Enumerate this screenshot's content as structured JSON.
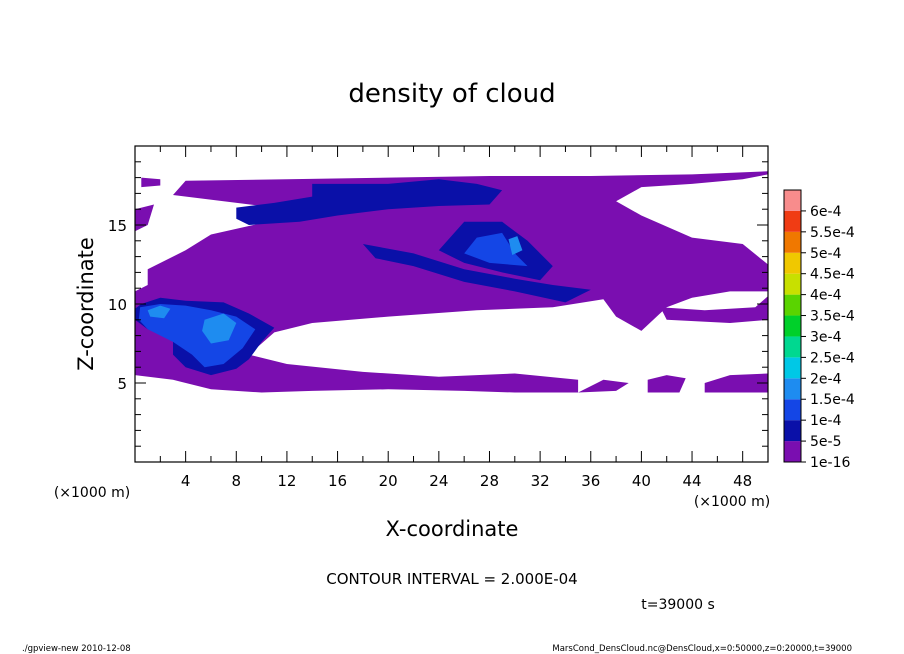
{
  "chart_data": {
    "type": "heatmap",
    "title": "density of cloud",
    "xlabel": "X-coordinate",
    "ylabel": "Z-coordinate",
    "x_unit_label": "(×1000 m)",
    "y_unit_label": "(×1000 m)",
    "xlim": [
      0,
      50
    ],
    "ylim": [
      0,
      20
    ],
    "x_ticks": [
      4,
      8,
      12,
      16,
      20,
      24,
      28,
      32,
      36,
      40,
      44,
      48
    ],
    "y_ticks": [
      5,
      10,
      15
    ],
    "contour_interval_text": "CONTOUR INTERVAL = 2.000E-04",
    "time_text": "t=39000 s",
    "colorbar": {
      "labels": [
        "1e-16",
        "5e-5",
        "1e-4",
        "1.5e-4",
        "2e-4",
        "2.5e-4",
        "3e-4",
        "3.5e-4",
        "4e-4",
        "4.5e-4",
        "5e-4",
        "5.5e-4",
        "6e-4"
      ],
      "colors": [
        "#7a0eb0",
        "#0a10a8",
        "#1446e6",
        "#1e8cf0",
        "#00c8e6",
        "#00d890",
        "#00d02a",
        "#5ad400",
        "#c8e000",
        "#f0c800",
        "#f07800",
        "#f03c14",
        "#f88c8c"
      ]
    },
    "regions": [
      {
        "level": 0,
        "points": [
          [
            0,
            5.5
          ],
          [
            3,
            5.2
          ],
          [
            6,
            4.6
          ],
          [
            10,
            4.4
          ],
          [
            14,
            4.5
          ],
          [
            20,
            4.6
          ],
          [
            26,
            4.5
          ],
          [
            30,
            4.4
          ],
          [
            35,
            4.4
          ],
          [
            35,
            5.2
          ],
          [
            30,
            5.6
          ],
          [
            24,
            5.4
          ],
          [
            18,
            5.7
          ],
          [
            12,
            6.2
          ],
          [
            9,
            6.8
          ],
          [
            11,
            8.2
          ],
          [
            14,
            8.8
          ],
          [
            20,
            9.2
          ],
          [
            27,
            9.6
          ],
          [
            33,
            9.8
          ],
          [
            37,
            10.3
          ],
          [
            38,
            9.2
          ],
          [
            40,
            8.3
          ],
          [
            42,
            9.8
          ],
          [
            44,
            10.4
          ],
          [
            47,
            10.8
          ],
          [
            50,
            10.8
          ],
          [
            50,
            12.5
          ],
          [
            48,
            13.8
          ],
          [
            44,
            14.2
          ],
          [
            40,
            15.6
          ],
          [
            38,
            16.5
          ],
          [
            40,
            17.4
          ],
          [
            44,
            17.6
          ],
          [
            48,
            17.9
          ],
          [
            50,
            18.2
          ],
          [
            50,
            18.4
          ],
          [
            44,
            18.2
          ],
          [
            36,
            18.1
          ],
          [
            28,
            18.1
          ],
          [
            20,
            18.0
          ],
          [
            12,
            17.9
          ],
          [
            4,
            17.8
          ],
          [
            3,
            16.9
          ],
          [
            10,
            16.2
          ],
          [
            11,
            15.3
          ],
          [
            6,
            14.4
          ],
          [
            4,
            13.4
          ],
          [
            1,
            12.2
          ],
          [
            1,
            11.2
          ],
          [
            0,
            10.8
          ]
        ]
      },
      {
        "level": 0,
        "points": [
          [
            0.5,
            18.0
          ],
          [
            2,
            17.9
          ],
          [
            2,
            17.5
          ],
          [
            0.5,
            17.4
          ]
        ]
      },
      {
        "level": 0,
        "points": [
          [
            0,
            16.0
          ],
          [
            1.5,
            16.3
          ],
          [
            1,
            15.0
          ],
          [
            0,
            14.6
          ]
        ]
      },
      {
        "level": 0,
        "points": [
          [
            41.5,
            9.8
          ],
          [
            45,
            9.6
          ],
          [
            49,
            9.8
          ],
          [
            50,
            10.5
          ],
          [
            50,
            9.0
          ],
          [
            47,
            8.8
          ],
          [
            42,
            9.0
          ]
        ]
      },
      {
        "level": 0,
        "points": [
          [
            35,
            4.4
          ],
          [
            38,
            4.5
          ],
          [
            39,
            5.0
          ],
          [
            37,
            5.2
          ]
        ]
      },
      {
        "level": 0,
        "points": [
          [
            40.5,
            4.4
          ],
          [
            43,
            4.4
          ],
          [
            43.5,
            5.3
          ],
          [
            42,
            5.5
          ],
          [
            40.5,
            5.2
          ]
        ]
      },
      {
        "level": 0,
        "points": [
          [
            45,
            4.4
          ],
          [
            50,
            4.4
          ],
          [
            50,
            5.6
          ],
          [
            47,
            5.5
          ],
          [
            45,
            5.0
          ]
        ]
      },
      {
        "level": 1,
        "points": [
          [
            0.5,
            10.0
          ],
          [
            2,
            10.4
          ],
          [
            4,
            10.2
          ],
          [
            7,
            10.1
          ],
          [
            9,
            9.4
          ],
          [
            11,
            8.5
          ],
          [
            10,
            7.6
          ],
          [
            9,
            6.5
          ],
          [
            8,
            5.9
          ],
          [
            6,
            5.5
          ],
          [
            4,
            6.0
          ],
          [
            3,
            6.8
          ],
          [
            3,
            7.8
          ],
          [
            1,
            8.4
          ],
          [
            0,
            9.0
          ],
          [
            0,
            9.7
          ]
        ]
      },
      {
        "level": 1,
        "points": [
          [
            8,
            16.1
          ],
          [
            11,
            16.4
          ],
          [
            14,
            16.8
          ],
          [
            14,
            17.6
          ],
          [
            20,
            17.6
          ],
          [
            24,
            17.9
          ],
          [
            27,
            17.6
          ],
          [
            29,
            17.2
          ],
          [
            28,
            16.3
          ],
          [
            24,
            16.2
          ],
          [
            20,
            16.0
          ],
          [
            16,
            15.6
          ],
          [
            13,
            15.2
          ],
          [
            9,
            15.0
          ],
          [
            8,
            15.4
          ]
        ]
      },
      {
        "level": 1,
        "points": [
          [
            18,
            13.8
          ],
          [
            22,
            13.2
          ],
          [
            26,
            12.2
          ],
          [
            30,
            11.6
          ],
          [
            33,
            11.2
          ],
          [
            36,
            10.9
          ],
          [
            34,
            10.1
          ],
          [
            30,
            10.8
          ],
          [
            26,
            11.4
          ],
          [
            22,
            12.4
          ],
          [
            19,
            12.9
          ]
        ]
      },
      {
        "level": 1,
        "points": [
          [
            26,
            15.2
          ],
          [
            29,
            15.2
          ],
          [
            31,
            14.0
          ],
          [
            33,
            12.4
          ],
          [
            32,
            11.5
          ],
          [
            29,
            12.0
          ],
          [
            26,
            12.6
          ],
          [
            24,
            13.4
          ]
        ]
      },
      {
        "level": 2,
        "points": [
          [
            0.4,
            9.8
          ],
          [
            2,
            10.0
          ],
          [
            4,
            9.9
          ],
          [
            6,
            9.6
          ],
          [
            8,
            9.2
          ],
          [
            9.5,
            8.4
          ],
          [
            8.5,
            7.2
          ],
          [
            7,
            6.2
          ],
          [
            5.5,
            6.0
          ],
          [
            4.5,
            6.8
          ],
          [
            3,
            7.6
          ],
          [
            1,
            8.4
          ],
          [
            0.3,
            9.0
          ]
        ]
      },
      {
        "level": 2,
        "points": [
          [
            27,
            14.2
          ],
          [
            29,
            14.5
          ],
          [
            30,
            13.2
          ],
          [
            31,
            12.4
          ],
          [
            28,
            12.6
          ],
          [
            26,
            13.2
          ]
        ]
      },
      {
        "level": 3,
        "points": [
          [
            1,
            9.6
          ],
          [
            2,
            9.9
          ],
          [
            2.8,
            9.7
          ],
          [
            2.3,
            9.1
          ],
          [
            1.2,
            9.2
          ]
        ]
      },
      {
        "level": 3,
        "points": [
          [
            5.5,
            9.0
          ],
          [
            7,
            9.4
          ],
          [
            8,
            8.8
          ],
          [
            7.4,
            7.7
          ],
          [
            6,
            7.5
          ],
          [
            5.3,
            8.3
          ]
        ]
      },
      {
        "level": 3,
        "points": [
          [
            29.5,
            14.1
          ],
          [
            30.2,
            14.3
          ],
          [
            30.6,
            13.4
          ],
          [
            29.8,
            13.1
          ]
        ]
      }
    ]
  },
  "footer": {
    "left": "./gpview-new  2010-12-08",
    "right": "MarsCond_DensCloud.nc@DensCloud,x=0:50000,z=0:20000,t=39000"
  }
}
